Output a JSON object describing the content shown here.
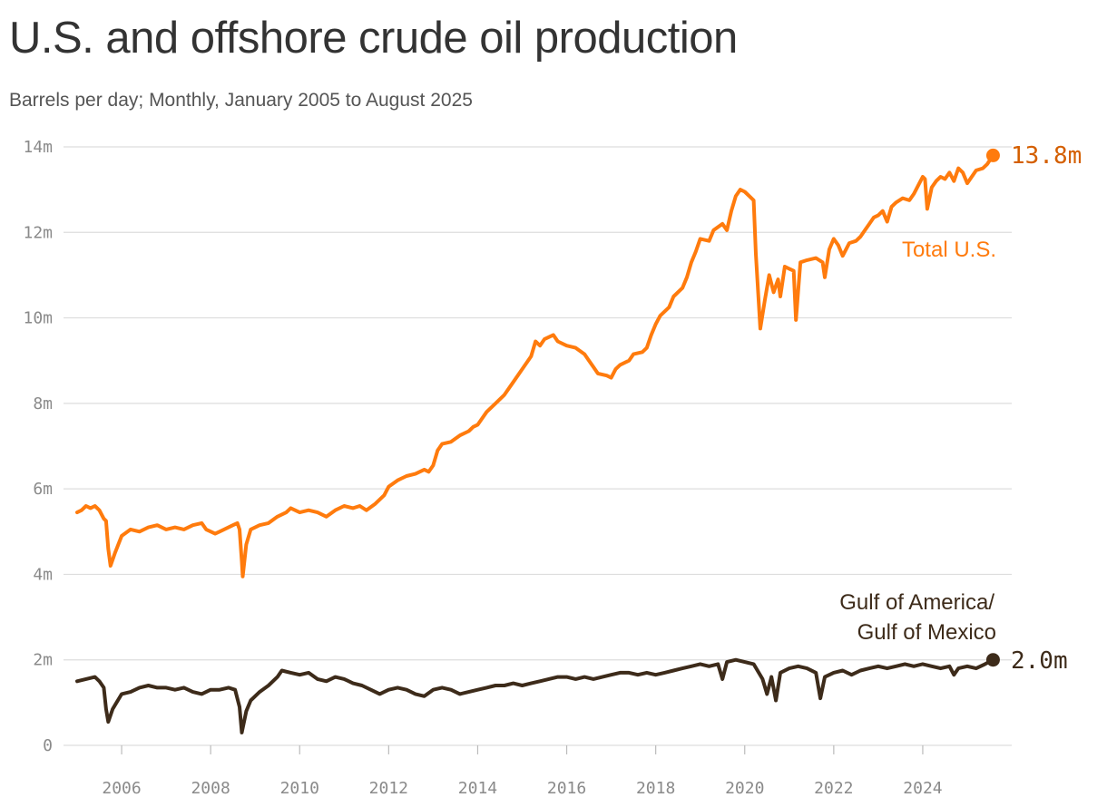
{
  "header": {
    "title": "U.S. and offshore crude oil production",
    "subtitle": "Barrels per day; Monthly, January 2005 to August 2025"
  },
  "colors": {
    "total": "#ff7b0d",
    "total_label": "#d45f00",
    "gulf": "#3d2b1a",
    "grid": "#dddddd",
    "tick_text": "#8a8a8a"
  },
  "chart_data": {
    "type": "line",
    "x_unit": "year (monthly points)",
    "xlim": [
      2005.0,
      2025.58
    ],
    "ylim": [
      0,
      14
    ],
    "y_ticks": [
      0,
      2,
      4,
      6,
      8,
      10,
      12,
      14
    ],
    "y_tick_labels": [
      "0",
      "2m",
      "4m",
      "6m",
      "8m",
      "10m",
      "12m",
      "14m"
    ],
    "x_ticks": [
      2006,
      2008,
      2010,
      2012,
      2014,
      2016,
      2018,
      2020,
      2022,
      2024
    ],
    "x_tick_labels": [
      "2006",
      "2008",
      "2010",
      "2012",
      "2014",
      "2016",
      "2018",
      "2020",
      "2022",
      "2024"
    ],
    "grid": "horizontal",
    "series": [
      {
        "name": "Total U.S.",
        "end_label": "13.8m",
        "points": [
          [
            2005.0,
            5.45
          ],
          [
            2005.1,
            5.5
          ],
          [
            2005.2,
            5.6
          ],
          [
            2005.3,
            5.55
          ],
          [
            2005.4,
            5.6
          ],
          [
            2005.5,
            5.5
          ],
          [
            2005.6,
            5.3
          ],
          [
            2005.65,
            5.25
          ],
          [
            2005.7,
            4.6
          ],
          [
            2005.75,
            4.2
          ],
          [
            2005.85,
            4.5
          ],
          [
            2006.0,
            4.9
          ],
          [
            2006.2,
            5.05
          ],
          [
            2006.4,
            5.0
          ],
          [
            2006.6,
            5.1
          ],
          [
            2006.8,
            5.15
          ],
          [
            2007.0,
            5.05
          ],
          [
            2007.2,
            5.1
          ],
          [
            2007.4,
            5.05
          ],
          [
            2007.6,
            5.15
          ],
          [
            2007.8,
            5.2
          ],
          [
            2007.9,
            5.05
          ],
          [
            2008.1,
            4.95
          ],
          [
            2008.2,
            5.0
          ],
          [
            2008.4,
            5.1
          ],
          [
            2008.5,
            5.15
          ],
          [
            2008.6,
            5.2
          ],
          [
            2008.65,
            5.05
          ],
          [
            2008.7,
            4.3
          ],
          [
            2008.72,
            3.95
          ],
          [
            2008.8,
            4.7
          ],
          [
            2008.9,
            5.05
          ],
          [
            2009.1,
            5.15
          ],
          [
            2009.3,
            5.2
          ],
          [
            2009.5,
            5.35
          ],
          [
            2009.7,
            5.45
          ],
          [
            2009.8,
            5.55
          ],
          [
            2010.0,
            5.45
          ],
          [
            2010.2,
            5.5
          ],
          [
            2010.4,
            5.45
          ],
          [
            2010.6,
            5.35
          ],
          [
            2010.8,
            5.5
          ],
          [
            2011.0,
            5.6
          ],
          [
            2011.2,
            5.55
          ],
          [
            2011.35,
            5.6
          ],
          [
            2011.5,
            5.5
          ],
          [
            2011.7,
            5.65
          ],
          [
            2011.9,
            5.85
          ],
          [
            2012.0,
            6.05
          ],
          [
            2012.2,
            6.2
          ],
          [
            2012.4,
            6.3
          ],
          [
            2012.6,
            6.35
          ],
          [
            2012.8,
            6.45
          ],
          [
            2012.9,
            6.4
          ],
          [
            2013.0,
            6.55
          ],
          [
            2013.1,
            6.9
          ],
          [
            2013.2,
            7.05
          ],
          [
            2013.4,
            7.1
          ],
          [
            2013.6,
            7.25
          ],
          [
            2013.8,
            7.35
          ],
          [
            2013.9,
            7.45
          ],
          [
            2014.0,
            7.5
          ],
          [
            2014.2,
            7.8
          ],
          [
            2014.4,
            8.0
          ],
          [
            2014.6,
            8.2
          ],
          [
            2014.8,
            8.5
          ],
          [
            2015.0,
            8.8
          ],
          [
            2015.2,
            9.1
          ],
          [
            2015.3,
            9.45
          ],
          [
            2015.4,
            9.35
          ],
          [
            2015.5,
            9.5
          ],
          [
            2015.7,
            9.6
          ],
          [
            2015.8,
            9.45
          ],
          [
            2016.0,
            9.35
          ],
          [
            2016.2,
            9.3
          ],
          [
            2016.4,
            9.15
          ],
          [
            2016.5,
            9.0
          ],
          [
            2016.6,
            8.85
          ],
          [
            2016.7,
            8.7
          ],
          [
            2016.9,
            8.65
          ],
          [
            2017.0,
            8.6
          ],
          [
            2017.1,
            8.8
          ],
          [
            2017.2,
            8.9
          ],
          [
            2017.4,
            9.0
          ],
          [
            2017.5,
            9.15
          ],
          [
            2017.7,
            9.2
          ],
          [
            2017.8,
            9.3
          ],
          [
            2017.9,
            9.6
          ],
          [
            2018.0,
            9.85
          ],
          [
            2018.1,
            10.05
          ],
          [
            2018.3,
            10.25
          ],
          [
            2018.4,
            10.5
          ],
          [
            2018.6,
            10.7
          ],
          [
            2018.7,
            10.95
          ],
          [
            2018.8,
            11.3
          ],
          [
            2018.9,
            11.55
          ],
          [
            2019.0,
            11.85
          ],
          [
            2019.2,
            11.8
          ],
          [
            2019.3,
            12.05
          ],
          [
            2019.5,
            12.2
          ],
          [
            2019.6,
            12.05
          ],
          [
            2019.7,
            12.5
          ],
          [
            2019.8,
            12.85
          ],
          [
            2019.9,
            13.0
          ],
          [
            2020.0,
            12.95
          ],
          [
            2020.1,
            12.85
          ],
          [
            2020.2,
            12.75
          ],
          [
            2020.25,
            11.5
          ],
          [
            2020.35,
            9.75
          ],
          [
            2020.45,
            10.4
          ],
          [
            2020.55,
            11.0
          ],
          [
            2020.65,
            10.6
          ],
          [
            2020.75,
            10.9
          ],
          [
            2020.8,
            10.5
          ],
          [
            2020.9,
            11.2
          ],
          [
            2021.0,
            11.15
          ],
          [
            2021.1,
            11.1
          ],
          [
            2021.15,
            9.95
          ],
          [
            2021.25,
            11.3
          ],
          [
            2021.4,
            11.35
          ],
          [
            2021.6,
            11.4
          ],
          [
            2021.75,
            11.3
          ],
          [
            2021.8,
            10.95
          ],
          [
            2021.9,
            11.6
          ],
          [
            2022.0,
            11.85
          ],
          [
            2022.1,
            11.7
          ],
          [
            2022.2,
            11.45
          ],
          [
            2022.35,
            11.75
          ],
          [
            2022.5,
            11.8
          ],
          [
            2022.6,
            11.9
          ],
          [
            2022.7,
            12.05
          ],
          [
            2022.8,
            12.2
          ],
          [
            2022.9,
            12.35
          ],
          [
            2023.0,
            12.4
          ],
          [
            2023.1,
            12.5
          ],
          [
            2023.2,
            12.25
          ],
          [
            2023.3,
            12.6
          ],
          [
            2023.4,
            12.7
          ],
          [
            2023.55,
            12.8
          ],
          [
            2023.7,
            12.75
          ],
          [
            2023.8,
            12.9
          ],
          [
            2023.9,
            13.1
          ],
          [
            2024.0,
            13.3
          ],
          [
            2024.05,
            13.25
          ],
          [
            2024.1,
            12.55
          ],
          [
            2024.2,
            13.05
          ],
          [
            2024.3,
            13.2
          ],
          [
            2024.4,
            13.3
          ],
          [
            2024.5,
            13.25
          ],
          [
            2024.6,
            13.4
          ],
          [
            2024.7,
            13.2
          ],
          [
            2024.8,
            13.5
          ],
          [
            2024.9,
            13.4
          ],
          [
            2025.0,
            13.15
          ],
          [
            2025.1,
            13.3
          ],
          [
            2025.2,
            13.45
          ],
          [
            2025.35,
            13.5
          ],
          [
            2025.45,
            13.6
          ],
          [
            2025.58,
            13.8
          ]
        ]
      },
      {
        "name": "Gulf of America/ Gulf of Mexico",
        "end_label": "2.0m",
        "points": [
          [
            2005.0,
            1.5
          ],
          [
            2005.2,
            1.55
          ],
          [
            2005.4,
            1.6
          ],
          [
            2005.5,
            1.5
          ],
          [
            2005.6,
            1.35
          ],
          [
            2005.65,
            0.85
          ],
          [
            2005.7,
            0.55
          ],
          [
            2005.8,
            0.85
          ],
          [
            2006.0,
            1.2
          ],
          [
            2006.2,
            1.25
          ],
          [
            2006.4,
            1.35
          ],
          [
            2006.6,
            1.4
          ],
          [
            2006.8,
            1.35
          ],
          [
            2007.0,
            1.35
          ],
          [
            2007.2,
            1.3
          ],
          [
            2007.4,
            1.35
          ],
          [
            2007.6,
            1.25
          ],
          [
            2007.8,
            1.2
          ],
          [
            2008.0,
            1.3
          ],
          [
            2008.2,
            1.3
          ],
          [
            2008.4,
            1.35
          ],
          [
            2008.55,
            1.3
          ],
          [
            2008.65,
            0.9
          ],
          [
            2008.7,
            0.3
          ],
          [
            2008.8,
            0.8
          ],
          [
            2008.9,
            1.05
          ],
          [
            2009.1,
            1.25
          ],
          [
            2009.3,
            1.4
          ],
          [
            2009.5,
            1.6
          ],
          [
            2009.6,
            1.75
          ],
          [
            2009.8,
            1.7
          ],
          [
            2010.0,
            1.65
          ],
          [
            2010.2,
            1.7
          ],
          [
            2010.4,
            1.55
          ],
          [
            2010.6,
            1.5
          ],
          [
            2010.8,
            1.6
          ],
          [
            2011.0,
            1.55
          ],
          [
            2011.2,
            1.45
          ],
          [
            2011.4,
            1.4
          ],
          [
            2011.6,
            1.3
          ],
          [
            2011.8,
            1.2
          ],
          [
            2012.0,
            1.3
          ],
          [
            2012.2,
            1.35
          ],
          [
            2012.4,
            1.3
          ],
          [
            2012.6,
            1.2
          ],
          [
            2012.8,
            1.15
          ],
          [
            2013.0,
            1.3
          ],
          [
            2013.2,
            1.35
          ],
          [
            2013.4,
            1.3
          ],
          [
            2013.6,
            1.2
          ],
          [
            2013.8,
            1.25
          ],
          [
            2014.0,
            1.3
          ],
          [
            2014.2,
            1.35
          ],
          [
            2014.4,
            1.4
          ],
          [
            2014.6,
            1.4
          ],
          [
            2014.8,
            1.45
          ],
          [
            2015.0,
            1.4
          ],
          [
            2015.2,
            1.45
          ],
          [
            2015.4,
            1.5
          ],
          [
            2015.6,
            1.55
          ],
          [
            2015.8,
            1.6
          ],
          [
            2016.0,
            1.6
          ],
          [
            2016.2,
            1.55
          ],
          [
            2016.4,
            1.6
          ],
          [
            2016.6,
            1.55
          ],
          [
            2016.8,
            1.6
          ],
          [
            2017.0,
            1.65
          ],
          [
            2017.2,
            1.7
          ],
          [
            2017.4,
            1.7
          ],
          [
            2017.6,
            1.65
          ],
          [
            2017.8,
            1.7
          ],
          [
            2018.0,
            1.65
          ],
          [
            2018.2,
            1.7
          ],
          [
            2018.4,
            1.75
          ],
          [
            2018.6,
            1.8
          ],
          [
            2018.8,
            1.85
          ],
          [
            2019.0,
            1.9
          ],
          [
            2019.2,
            1.85
          ],
          [
            2019.4,
            1.9
          ],
          [
            2019.5,
            1.55
          ],
          [
            2019.6,
            1.95
          ],
          [
            2019.8,
            2.0
          ],
          [
            2020.0,
            1.95
          ],
          [
            2020.2,
            1.9
          ],
          [
            2020.4,
            1.55
          ],
          [
            2020.5,
            1.2
          ],
          [
            2020.6,
            1.6
          ],
          [
            2020.7,
            1.05
          ],
          [
            2020.8,
            1.7
          ],
          [
            2021.0,
            1.8
          ],
          [
            2021.2,
            1.85
          ],
          [
            2021.4,
            1.8
          ],
          [
            2021.6,
            1.7
          ],
          [
            2021.7,
            1.1
          ],
          [
            2021.8,
            1.6
          ],
          [
            2022.0,
            1.7
          ],
          [
            2022.2,
            1.75
          ],
          [
            2022.4,
            1.65
          ],
          [
            2022.6,
            1.75
          ],
          [
            2022.8,
            1.8
          ],
          [
            2023.0,
            1.85
          ],
          [
            2023.2,
            1.8
          ],
          [
            2023.4,
            1.85
          ],
          [
            2023.6,
            1.9
          ],
          [
            2023.8,
            1.85
          ],
          [
            2024.0,
            1.9
          ],
          [
            2024.2,
            1.85
          ],
          [
            2024.4,
            1.8
          ],
          [
            2024.6,
            1.85
          ],
          [
            2024.7,
            1.65
          ],
          [
            2024.8,
            1.8
          ],
          [
            2025.0,
            1.85
          ],
          [
            2025.2,
            1.8
          ],
          [
            2025.4,
            1.9
          ],
          [
            2025.58,
            2.0
          ]
        ]
      }
    ]
  }
}
